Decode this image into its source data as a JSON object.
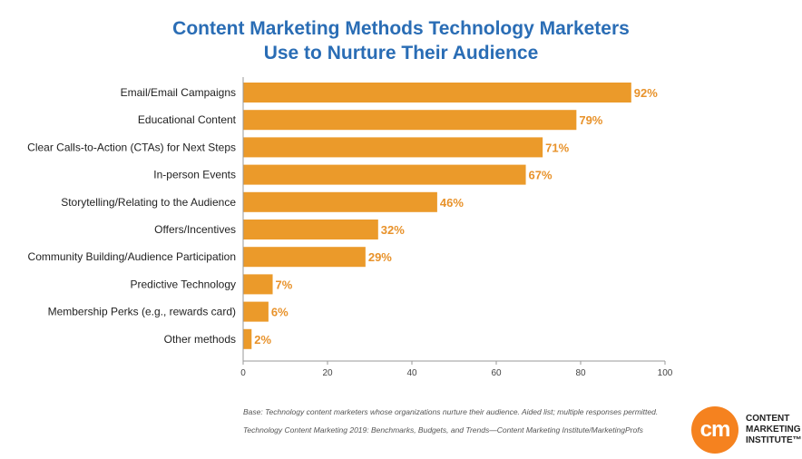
{
  "chart_data": {
    "type": "bar",
    "orientation": "horizontal",
    "title_lines": [
      "Content Marketing Methods Technology Marketers",
      "Use to Nurture Their Audience"
    ],
    "categories": [
      "Email/Email Campaigns",
      "Educational Content",
      "Clear Calls-to-Action (CTAs) for Next Steps",
      "In-person Events",
      "Storytelling/Relating to the Audience",
      "Offers/Incentives",
      "Community Building/Audience Participation",
      "Predictive Technology",
      "Membership Perks (e.g., rewards card)",
      "Other methods"
    ],
    "values": [
      92,
      79,
      71,
      67,
      46,
      32,
      29,
      7,
      6,
      2
    ],
    "value_labels": [
      "92%",
      "79%",
      "71%",
      "67%",
      "46%",
      "32%",
      "29%",
      "7%",
      "6%",
      "2%"
    ],
    "xlim": [
      0,
      100
    ],
    "xticks": [
      0,
      20,
      40,
      60,
      80,
      100
    ],
    "grid": false,
    "bar_color": "#eb9a2a",
    "label_color": "#e8922a"
  },
  "notes": {
    "base": "Base: Technology content marketers whose organizations nurture their audience. Aided list; multiple responses permitted.",
    "source": "Technology Content Marketing 2019: Benchmarks, Budgets, and Trends—Content Marketing Institute/MarketingProfs"
  },
  "logo": {
    "mark": "cm",
    "lines": [
      "CONTENT",
      "MARKETING",
      "INSTITUTE™"
    ],
    "color": "#f5821f"
  }
}
